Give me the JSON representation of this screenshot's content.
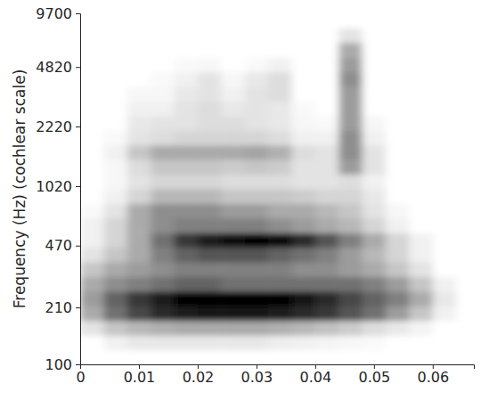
{
  "chart_data": {
    "type": "heatmap",
    "y_label": "Frequency (Hz) (cochlear scale)",
    "log": "y",
    "color": "#000000",
    "xlim": [
      0,
      0.067
    ],
    "ylim": [
      100,
      9700
    ],
    "xticks": [
      0,
      0.01,
      0.02,
      0.03,
      0.04,
      0.05,
      0.06
    ],
    "yticks": [
      100,
      210,
      470,
      1020,
      2220,
      4820,
      9700
    ],
    "x_bins": [
      0,
      0.004,
      0.008,
      0.012,
      0.016,
      0.02,
      0.024,
      0.028,
      0.032,
      0.036,
      0.04,
      0.044,
      0.048,
      0.052,
      0.056,
      0.06,
      0.064,
      0.068
    ],
    "y_bins": [
      100,
      121,
      146,
      177,
      214,
      259,
      314,
      380,
      460,
      556,
      673,
      814,
      985,
      1192,
      1442,
      1745,
      2111,
      2555,
      3091,
      3740,
      4526,
      5476,
      6626,
      8018,
      9700
    ],
    "values": [
      [
        0,
        0,
        0,
        0,
        0,
        0,
        0,
        0,
        0,
        0,
        0,
        0,
        0,
        0,
        0,
        0,
        0
      ],
      [
        0,
        0.05,
        0.08,
        0.08,
        0.08,
        0.08,
        0.08,
        0.08,
        0.06,
        0.05,
        0.04,
        0.03,
        0.02,
        0,
        0,
        0,
        0
      ],
      [
        0.1,
        0.2,
        0.25,
        0.28,
        0.3,
        0.3,
        0.3,
        0.3,
        0.28,
        0.25,
        0.22,
        0.18,
        0.12,
        0.08,
        0.04,
        0,
        0
      ],
      [
        0.3,
        0.5,
        0.65,
        0.75,
        0.8,
        0.82,
        0.82,
        0.82,
        0.8,
        0.75,
        0.7,
        0.6,
        0.5,
        0.35,
        0.2,
        0.05,
        0
      ],
      [
        0.35,
        0.55,
        0.7,
        0.8,
        0.88,
        0.9,
        0.9,
        0.9,
        0.88,
        0.82,
        0.75,
        0.65,
        0.55,
        0.45,
        0.3,
        0.08,
        0
      ],
      [
        0.3,
        0.4,
        0.45,
        0.5,
        0.55,
        0.55,
        0.5,
        0.5,
        0.5,
        0.5,
        0.5,
        0.5,
        0.45,
        0.35,
        0.2,
        0.05,
        0
      ],
      [
        0.2,
        0.3,
        0.35,
        0.4,
        0.45,
        0.45,
        0.45,
        0.45,
        0.45,
        0.4,
        0.4,
        0.35,
        0.3,
        0.2,
        0.1,
        0,
        0
      ],
      [
        0.1,
        0.2,
        0.3,
        0.45,
        0.55,
        0.6,
        0.6,
        0.6,
        0.55,
        0.5,
        0.45,
        0.35,
        0.25,
        0.15,
        0.05,
        0,
        0
      ],
      [
        0.05,
        0.15,
        0.3,
        0.5,
        0.7,
        0.8,
        0.85,
        0.88,
        0.85,
        0.75,
        0.6,
        0.45,
        0.3,
        0.15,
        0.05,
        0,
        0
      ],
      [
        0.05,
        0.15,
        0.3,
        0.4,
        0.45,
        0.45,
        0.45,
        0.45,
        0.4,
        0.35,
        0.3,
        0.25,
        0.15,
        0.05,
        0,
        0,
        0
      ],
      [
        0.02,
        0.1,
        0.3,
        0.4,
        0.4,
        0.4,
        0.35,
        0.35,
        0.3,
        0.3,
        0.25,
        0.2,
        0.1,
        0.03,
        0,
        0,
        0
      ],
      [
        0,
        0.05,
        0.15,
        0.25,
        0.25,
        0.25,
        0.2,
        0.2,
        0.2,
        0.18,
        0.15,
        0.15,
        0.08,
        0,
        0,
        0,
        0
      ],
      [
        0,
        0.03,
        0.1,
        0.15,
        0.15,
        0.15,
        0.12,
        0.12,
        0.12,
        0.1,
        0.1,
        0.12,
        0.05,
        0,
        0,
        0,
        0
      ],
      [
        0,
        0.03,
        0.12,
        0.2,
        0.2,
        0.2,
        0.18,
        0.2,
        0.18,
        0.1,
        0.1,
        0.35,
        0.1,
        0,
        0,
        0,
        0
      ],
      [
        0,
        0.05,
        0.2,
        0.3,
        0.3,
        0.3,
        0.3,
        0.32,
        0.28,
        0.12,
        0.1,
        0.4,
        0.1,
        0,
        0,
        0,
        0
      ],
      [
        0,
        0.02,
        0.1,
        0.12,
        0.15,
        0.15,
        0.15,
        0.15,
        0.12,
        0.05,
        0.05,
        0.4,
        0.05,
        0,
        0,
        0,
        0
      ],
      [
        0,
        0,
        0.08,
        0.1,
        0.1,
        0.12,
        0.12,
        0.1,
        0.08,
        0.03,
        0.02,
        0.35,
        0.03,
        0,
        0,
        0,
        0
      ],
      [
        0,
        0,
        0.05,
        0.05,
        0.1,
        0.12,
        0.08,
        0.1,
        0.08,
        0.02,
        0,
        0.35,
        0,
        0,
        0,
        0,
        0
      ],
      [
        0,
        0,
        0.03,
        0.03,
        0.08,
        0.1,
        0.05,
        0.1,
        0.12,
        0,
        0,
        0.35,
        0,
        0,
        0,
        0,
        0
      ],
      [
        0,
        0,
        0,
        0.02,
        0.05,
        0.1,
        0.03,
        0.08,
        0.12,
        0,
        0,
        0.4,
        0,
        0,
        0,
        0,
        0
      ],
      [
        0,
        0,
        0,
        0,
        0.02,
        0.03,
        0,
        0.02,
        0.05,
        0,
        0,
        0.35,
        0,
        0,
        0,
        0,
        0
      ],
      [
        0,
        0,
        0,
        0,
        0,
        0,
        0,
        0,
        0,
        0,
        0,
        0.3,
        0,
        0,
        0,
        0,
        0
      ],
      [
        0,
        0,
        0,
        0,
        0,
        0,
        0,
        0,
        0,
        0,
        0,
        0.1,
        0,
        0,
        0,
        0,
        0
      ],
      [
        0,
        0,
        0,
        0,
        0,
        0,
        0,
        0,
        0,
        0,
        0,
        0,
        0,
        0,
        0,
        0,
        0
      ]
    ]
  }
}
